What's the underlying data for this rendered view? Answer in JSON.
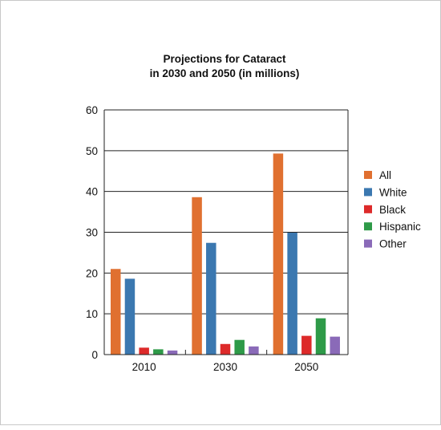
{
  "chart_data": {
    "type": "bar",
    "title_lines": [
      "Projections for Cataract",
      "in 2030 and 2050 (in millions)"
    ],
    "xlabel": "",
    "ylabel": "",
    "categories": [
      "2010",
      "2030",
      "2050"
    ],
    "ylim": [
      0,
      60
    ],
    "yticks": [
      "0",
      "10",
      "20",
      "30",
      "40",
      "50",
      "60"
    ],
    "grid": true,
    "legend_position": "right",
    "series": [
      {
        "name": "All",
        "color": "#e07030",
        "values": [
          21.0,
          38.6,
          49.3
        ]
      },
      {
        "name": "White",
        "color": "#3b78b0",
        "values": [
          18.6,
          27.4,
          29.9
        ]
      },
      {
        "name": "Black",
        "color": "#dd2a2a",
        "values": [
          1.7,
          2.6,
          4.6
        ]
      },
      {
        "name": "Hispanic",
        "color": "#2e9a48",
        "values": [
          1.3,
          3.6,
          8.9
        ]
      },
      {
        "name": "Other",
        "color": "#8a6ab8",
        "values": [
          1.0,
          2.0,
          4.4
        ]
      }
    ]
  }
}
